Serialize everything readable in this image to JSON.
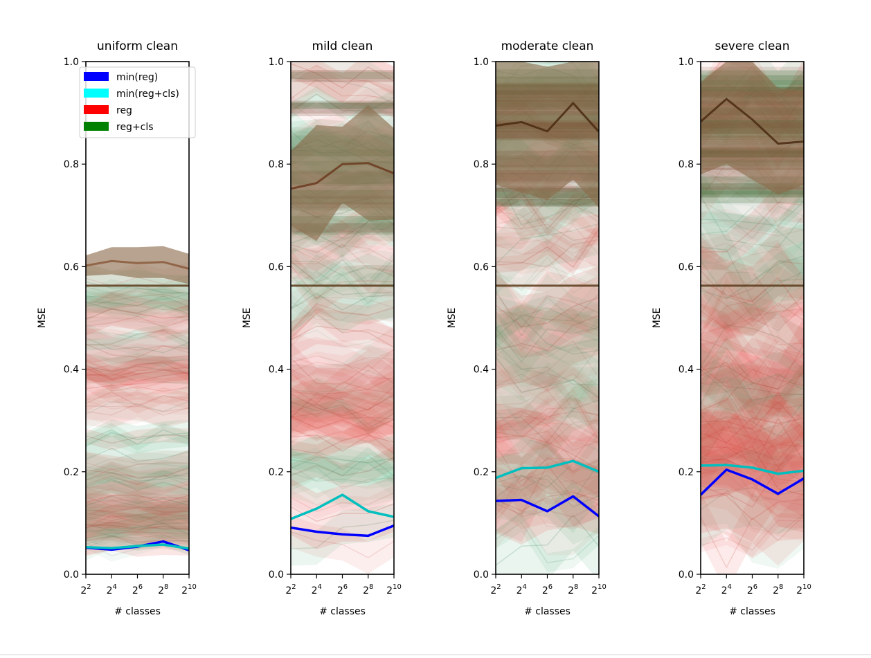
{
  "figure": {
    "legend_labels": [
      "min(reg)",
      "min(reg+cls)",
      "reg",
      "reg+cls"
    ],
    "legend_colors": [
      "#0000ff",
      "#00ffff",
      "#ff0000",
      "#008000"
    ]
  },
  "chart_data": [
    {
      "type": "line",
      "title": "uniform clean",
      "xlabel": "# classes",
      "ylabel": "MSE",
      "x": [
        4,
        16,
        64,
        256,
        1024
      ],
      "x_tick_labels": [
        {
          "base": "2",
          "exp": "2"
        },
        {
          "base": "2",
          "exp": "4"
        },
        {
          "base": "2",
          "exp": "6"
        },
        {
          "base": "2",
          "exp": "8"
        },
        {
          "base": "2",
          "exp": "10"
        }
      ],
      "x_scale": "log2",
      "ylim": [
        0.0,
        1.0
      ],
      "y_ticks": [
        "0.0",
        "0.2",
        "0.4",
        "0.6",
        "0.8",
        "1.0"
      ],
      "legend": "top-left",
      "series": [
        {
          "name": "min(reg)",
          "color": "#0000ff",
          "values": [
            0.052,
            0.048,
            0.054,
            0.064,
            0.047
          ]
        },
        {
          "name": "min(reg+cls)",
          "color": "#00bfbf",
          "values": [
            0.053,
            0.051,
            0.055,
            0.058,
            0.05
          ]
        }
      ],
      "mean_line": {
        "color": "#8b5a3c",
        "values": [
          0.602,
          0.611,
          0.607,
          0.609,
          0.596
        ]
      },
      "mean_band": {
        "low": [
          0.582,
          0.585,
          0.578,
          0.578,
          0.566
        ],
        "high": [
          0.622,
          0.638,
          0.638,
          0.64,
          0.625
        ]
      },
      "flat_line": {
        "color": "#5a3a1a",
        "value": 0.563
      }
    },
    {
      "type": "line",
      "title": "mild clean",
      "xlabel": "# classes",
      "ylabel": "MSE",
      "x": [
        4,
        16,
        64,
        256,
        1024
      ],
      "x_tick_labels": [
        {
          "base": "2",
          "exp": "2"
        },
        {
          "base": "2",
          "exp": "4"
        },
        {
          "base": "2",
          "exp": "6"
        },
        {
          "base": "2",
          "exp": "8"
        },
        {
          "base": "2",
          "exp": "10"
        }
      ],
      "x_scale": "log2",
      "ylim": [
        0.0,
        1.0
      ],
      "y_ticks": [
        "0.0",
        "0.2",
        "0.4",
        "0.6",
        "0.8",
        "1.0"
      ],
      "series": [
        {
          "name": "min(reg)",
          "color": "#0000ff",
          "values": [
            0.091,
            0.083,
            0.078,
            0.075,
            0.095
          ]
        },
        {
          "name": "min(reg+cls)",
          "color": "#00bfbf",
          "values": [
            0.108,
            0.128,
            0.155,
            0.123,
            0.112
          ]
        }
      ],
      "mean_line": {
        "color": "#6b3a1f",
        "values": [
          0.752,
          0.763,
          0.8,
          0.802,
          0.782
        ]
      },
      "mean_band": {
        "low": [
          0.68,
          0.65,
          0.725,
          0.69,
          0.692
        ],
        "high": [
          0.825,
          0.876,
          0.873,
          0.915,
          0.87
        ]
      },
      "flat_line": {
        "color": "#5a3a1a",
        "value": 0.563
      }
    },
    {
      "type": "line",
      "title": "moderate clean",
      "xlabel": "# classes",
      "ylabel": "MSE",
      "x": [
        4,
        16,
        64,
        256,
        1024
      ],
      "x_tick_labels": [
        {
          "base": "2",
          "exp": "2"
        },
        {
          "base": "2",
          "exp": "4"
        },
        {
          "base": "2",
          "exp": "6"
        },
        {
          "base": "2",
          "exp": "8"
        },
        {
          "base": "2",
          "exp": "10"
        }
      ],
      "x_scale": "log2",
      "ylim": [
        0.0,
        1.0
      ],
      "y_ticks": [
        "0.0",
        "0.2",
        "0.4",
        "0.6",
        "0.8",
        "1.0"
      ],
      "series": [
        {
          "name": "min(reg)",
          "color": "#0000ff",
          "values": [
            0.143,
            0.145,
            0.123,
            0.152,
            0.113
          ]
        },
        {
          "name": "min(reg+cls)",
          "color": "#00bfbf",
          "values": [
            0.188,
            0.207,
            0.208,
            0.221,
            0.2
          ]
        }
      ],
      "mean_line": {
        "color": "#4a2a12",
        "values": [
          0.875,
          0.882,
          0.864,
          0.919,
          0.863
        ]
      },
      "mean_band": {
        "low": [
          0.76,
          0.745,
          0.73,
          0.77,
          0.715
        ],
        "high": [
          1.0,
          1.0,
          0.99,
          1.0,
          1.0
        ]
      },
      "flat_line": {
        "color": "#5a3a1a",
        "value": 0.563
      }
    },
    {
      "type": "line",
      "title": "severe clean",
      "xlabel": "# classes",
      "ylabel": "MSE",
      "x": [
        4,
        16,
        64,
        256,
        1024
      ],
      "x_tick_labels": [
        {
          "base": "2",
          "exp": "2"
        },
        {
          "base": "2",
          "exp": "4"
        },
        {
          "base": "2",
          "exp": "6"
        },
        {
          "base": "2",
          "exp": "8"
        },
        {
          "base": "2",
          "exp": "10"
        }
      ],
      "x_scale": "log2",
      "ylim": [
        0.0,
        1.0
      ],
      "y_ticks": [
        "0.0",
        "0.2",
        "0.4",
        "0.6",
        "0.8",
        "1.0"
      ],
      "series": [
        {
          "name": "min(reg)",
          "color": "#0000ff",
          "values": [
            0.155,
            0.204,
            0.185,
            0.157,
            0.187
          ]
        },
        {
          "name": "min(reg+cls)",
          "color": "#00bfbf",
          "values": [
            0.212,
            0.213,
            0.208,
            0.196,
            0.202
          ]
        }
      ],
      "mean_line": {
        "color": "#4a2a12",
        "values": [
          0.883,
          0.927,
          0.887,
          0.84,
          0.844
        ]
      },
      "mean_band": {
        "low": [
          0.78,
          0.8,
          0.77,
          0.74,
          0.76
        ],
        "high": [
          0.96,
          1.0,
          1.0,
          0.948,
          0.945
        ]
      },
      "flat_line": {
        "color": "#5a3a1a",
        "value": 0.563
      }
    }
  ]
}
